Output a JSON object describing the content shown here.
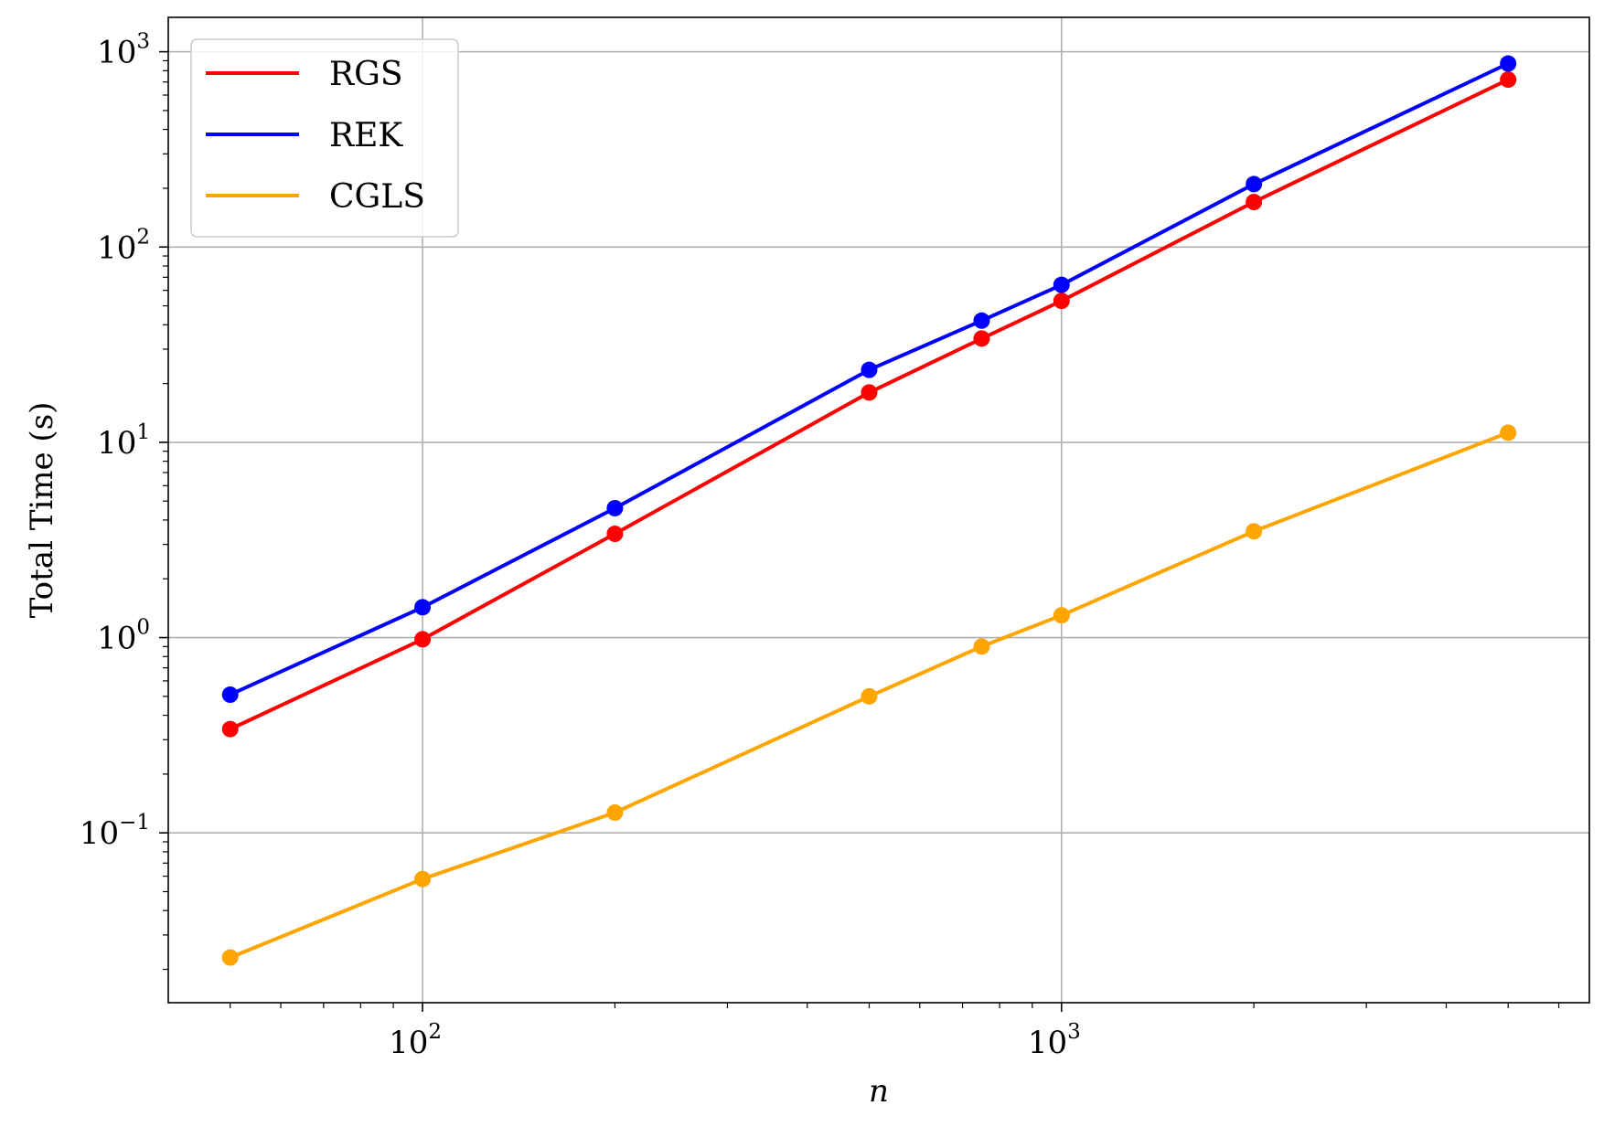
{
  "chart_data": {
    "type": "line",
    "xlabel": "n",
    "ylabel": "Total Time (s)",
    "xscale": "log",
    "yscale": "log",
    "xlim": [
      40,
      6700
    ],
    "ylim": [
      0.0135,
      1500
    ],
    "x_ticks": [
      {
        "value": 100,
        "base": "10",
        "exp": "2"
      },
      {
        "value": 1000,
        "base": "10",
        "exp": "3"
      }
    ],
    "y_ticks": [
      {
        "value": 0.1,
        "base": "10",
        "exp": "−1"
      },
      {
        "value": 1,
        "base": "10",
        "exp": "0"
      },
      {
        "value": 10,
        "base": "10",
        "exp": "1"
      },
      {
        "value": 100,
        "base": "10",
        "exp": "2"
      },
      {
        "value": 1000,
        "base": "10",
        "exp": "3"
      }
    ],
    "grid": true,
    "legend_position": "top-left",
    "x": [
      50,
      100,
      200,
      500,
      750,
      1000,
      2000,
      5000
    ],
    "series": [
      {
        "name": "RGS",
        "color": "#ff0000",
        "values": [
          0.34,
          0.98,
          3.4,
          18,
          34,
          53,
          170,
          720
        ]
      },
      {
        "name": "REK",
        "color": "#0000ff",
        "values": [
          0.51,
          1.43,
          4.6,
          23.5,
          42,
          64,
          210,
          870
        ]
      },
      {
        "name": "CGLS",
        "color": "#ffa500",
        "values": [
          0.023,
          0.058,
          0.127,
          0.5,
          0.9,
          1.3,
          3.5,
          11.2
        ]
      }
    ]
  }
}
